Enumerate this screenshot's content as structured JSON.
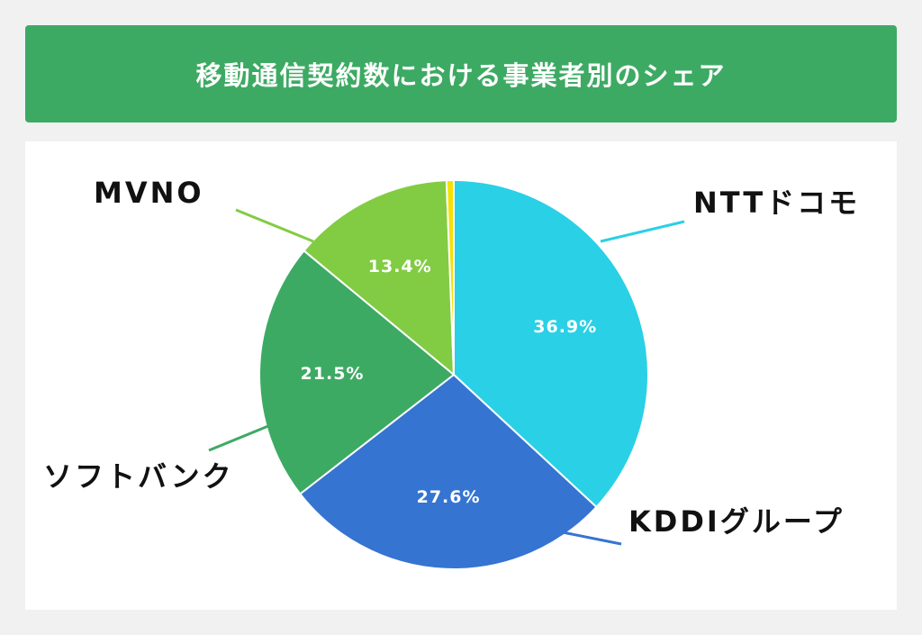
{
  "title": "移動通信契約数における事業者別のシェア",
  "colors": {
    "background": "#f1f1f1",
    "title_bar": "#3daa63",
    "panel": "#ffffff"
  },
  "chart_data": {
    "type": "pie",
    "title": "移動通信契約数における事業者別のシェア",
    "start_angle_deg": 0,
    "direction": "clockwise",
    "slices": [
      {
        "label": "NTTドコモ",
        "value": 36.9,
        "value_label": "36.9%",
        "color": "#2ad0e6"
      },
      {
        "label": "KDDIグループ",
        "value": 27.6,
        "value_label": "27.6%",
        "color": "#3574d1"
      },
      {
        "label": "ソフトバンク",
        "value": 21.5,
        "value_label": "21.5%",
        "color": "#3daa63"
      },
      {
        "label": "MVNO",
        "value": 13.4,
        "value_label": "13.4%",
        "color": "#82cc44"
      },
      {
        "label": "",
        "value": 0.6,
        "value_label": "",
        "color": "#f5e000"
      }
    ]
  }
}
